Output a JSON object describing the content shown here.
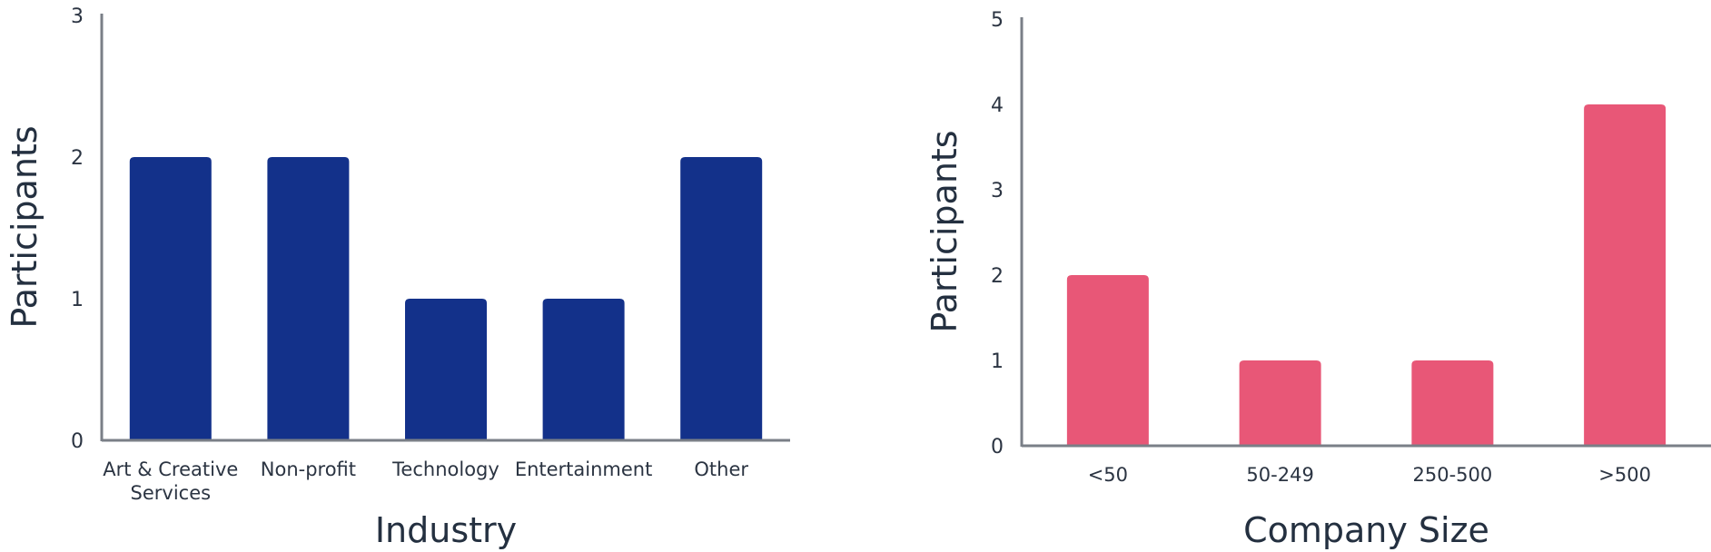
{
  "chart_data": [
    {
      "type": "bar",
      "categories": [
        "Art & Creative Services",
        "Non-profit",
        "Technology",
        "Entertainment",
        "Other"
      ],
      "category_lines": [
        [
          "Art & Creative",
          "Services"
        ],
        [
          "Non-profit"
        ],
        [
          "Technology"
        ],
        [
          "Entertainment"
        ],
        [
          "Other"
        ]
      ],
      "values": [
        2,
        2,
        1,
        1,
        2
      ],
      "title": "",
      "xlabel": "Industry",
      "ylabel": "Participants",
      "ylim": [
        0,
        3
      ],
      "yticks": [
        "0",
        "1",
        "2",
        "3"
      ],
      "grid": false,
      "color": "#13318a"
    },
    {
      "type": "bar",
      "categories": [
        "<50",
        "50-249",
        "250-500",
        ">500"
      ],
      "category_lines": [
        [
          "<50"
        ],
        [
          "50-249"
        ],
        [
          "250-500"
        ],
        [
          ">500"
        ]
      ],
      "values": [
        2,
        1,
        1,
        4
      ],
      "title": "",
      "xlabel": "Company Size",
      "ylabel": "Participants",
      "ylim": [
        0,
        5
      ],
      "yticks": [
        "0",
        "1",
        "2",
        "3",
        "4",
        "5"
      ],
      "grid": false,
      "color": "#e85777"
    }
  ]
}
